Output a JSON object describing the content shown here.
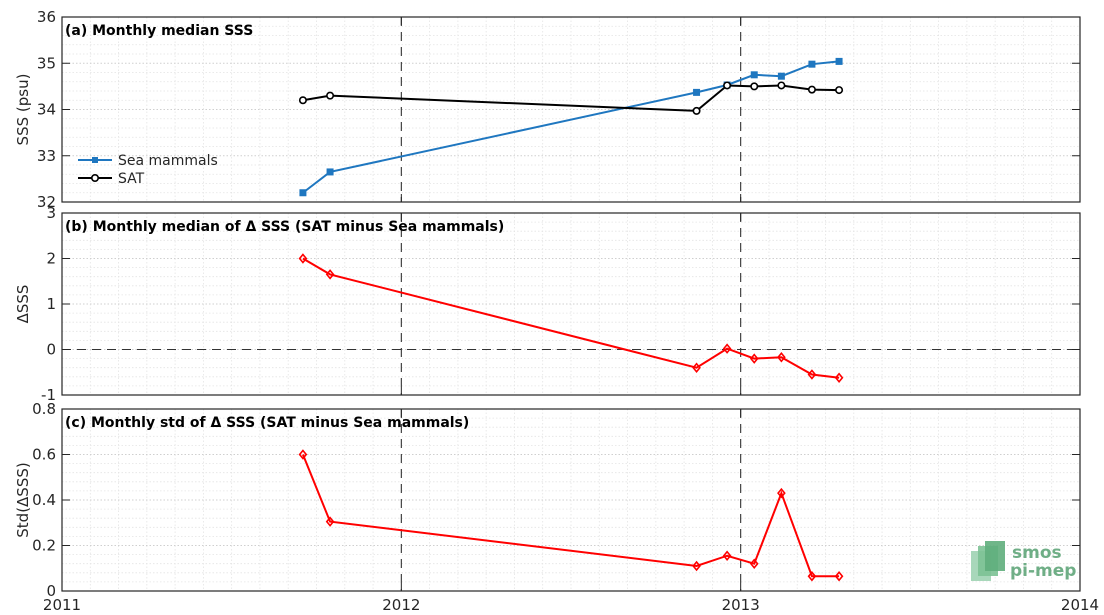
{
  "chart_data": [
    {
      "type": "line",
      "title": "(a) Monthly median SSS",
      "ylabel": "SSS (psu)",
      "xlim": [
        2011,
        2014
      ],
      "ylim": [
        32,
        36
      ],
      "xticks": [
        "2011",
        "2012",
        "2013",
        "2014"
      ],
      "yticks": [
        "32",
        "33",
        "34",
        "35",
        "36"
      ],
      "legend": "center-left",
      "series": [
        {
          "name": "Sea mammals",
          "color": "#1f77c0",
          "marker": "square",
          "x": [
            2011.71,
            2011.79,
            2012.87,
            2012.96,
            2013.04,
            2013.12,
            2013.21,
            2013.29
          ],
          "values": [
            32.2,
            32.65,
            34.37,
            34.53,
            34.75,
            34.72,
            34.98,
            35.04
          ]
        },
        {
          "name": "SAT",
          "color": "#000000",
          "marker": "circle",
          "x": [
            2011.71,
            2011.79,
            2012.87,
            2012.96,
            2013.04,
            2013.12,
            2013.21,
            2013.29
          ],
          "values": [
            34.2,
            34.3,
            33.97,
            34.52,
            34.5,
            34.52,
            34.43,
            34.42
          ]
        }
      ]
    },
    {
      "type": "line",
      "title": "(b) Monthly median of Δ SSS (SAT minus Sea mammals)",
      "ylabel": "ΔSSS",
      "xlim": [
        2011,
        2014
      ],
      "ylim": [
        -1,
        3
      ],
      "yticks": [
        "-1",
        "0",
        "1",
        "2",
        "3"
      ],
      "series": [
        {
          "color": "#ff0000",
          "marker": "diamond",
          "x": [
            2011.71,
            2011.79,
            2012.87,
            2012.96,
            2013.04,
            2013.12,
            2013.21,
            2013.29
          ],
          "values": [
            2.0,
            1.65,
            -0.4,
            0.02,
            -0.2,
            -0.17,
            -0.55,
            -0.62
          ]
        }
      ]
    },
    {
      "type": "line",
      "title": "(c) Monthly std of Δ SSS (SAT minus Sea mammals)",
      "ylabel": "Std(ΔSSS)",
      "xlim": [
        2011,
        2014
      ],
      "ylim": [
        0,
        0.8
      ],
      "xticks": [
        "2011",
        "2012",
        "2013",
        "2014"
      ],
      "yticks": [
        "0",
        "0.2",
        "0.4",
        "0.6",
        "0.8"
      ],
      "series": [
        {
          "color": "#ff0000",
          "marker": "diamond",
          "x": [
            2011.71,
            2011.79,
            2012.87,
            2012.96,
            2013.04,
            2013.12,
            2013.21,
            2013.29
          ],
          "values": [
            0.6,
            0.305,
            0.11,
            0.155,
            0.12,
            0.43,
            0.065,
            0.065
          ]
        }
      ]
    }
  ],
  "logo": {
    "line1": "smos",
    "line2": "pi-mep"
  }
}
